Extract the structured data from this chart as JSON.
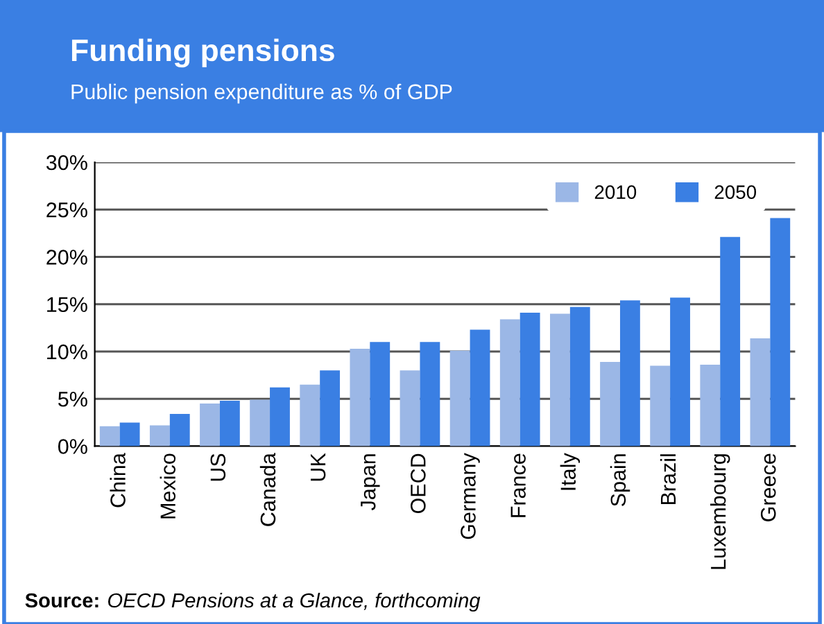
{
  "chart_data": {
    "type": "bar",
    "title": "Funding pensions",
    "subtitle": "Public pension expenditure as % of GDP",
    "categories": [
      "China",
      "Mexico",
      "US",
      "Canada",
      "UK",
      "Japan",
      "OECD",
      "Germany",
      "France",
      "Italy",
      "Spain",
      "Brazil",
      "Luxembourg",
      "Greece"
    ],
    "series": [
      {
        "name": "2010",
        "color": "#9bb7e6",
        "values": [
          2.1,
          2.2,
          4.5,
          4.9,
          6.5,
          10.3,
          8.0,
          10.1,
          13.4,
          14.0,
          8.9,
          8.5,
          8.6,
          11.4
        ]
      },
      {
        "name": "2050",
        "color": "#3a7fe3",
        "values": [
          2.5,
          3.4,
          4.8,
          6.2,
          8.0,
          11.0,
          11.0,
          12.3,
          14.1,
          14.7,
          15.4,
          15.7,
          22.1,
          24.1
        ]
      }
    ],
    "ylim": [
      0,
      30
    ],
    "yticks": [
      {
        "value": 0,
        "label": "0%"
      },
      {
        "value": 5,
        "label": "5%"
      },
      {
        "value": 10,
        "label": "10%"
      },
      {
        "value": 15,
        "label": "15%"
      },
      {
        "value": 20,
        "label": "20%"
      },
      {
        "value": 25,
        "label": "25%"
      },
      {
        "value": 30,
        "label": "30%"
      }
    ],
    "grid": "y",
    "legend": "top right",
    "annotations": [
      "Source: OECD Pensions at a Glance, forthcoming"
    ]
  }
}
